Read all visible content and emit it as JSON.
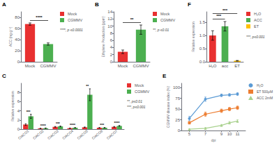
{
  "chart_data": [
    {
      "type": "bar",
      "title": "A",
      "categories": [
        "Mock",
        "CGMMV"
      ],
      "values": [
        68,
        32
      ],
      "errors": [
        2.0,
        2.0
      ],
      "colors": [
        "#e83030",
        "#4caf50"
      ],
      "legend_labels": [
        "Mock",
        "CGMMV"
      ],
      "legend": "right",
      "ylabel": "ACC (ng g⁻¹)",
      "ylim": [
        0,
        90
      ],
      "yticks": [
        0,
        20,
        40,
        60,
        80
      ],
      "grid": false,
      "annotations": [
        {
          "text": "****",
          "between": [
            "Mock",
            "CGMMV"
          ]
        },
        {
          "text": "****, p ≤0.0001"
        }
      ]
    },
    {
      "type": "bar",
      "title": "B",
      "categories": [
        "Mock",
        "CGMMV"
      ],
      "values": [
        2.8,
        9.0
      ],
      "errors": [
        0.5,
        1.3
      ],
      "colors": [
        "#e83030",
        "#4caf50"
      ],
      "legend_labels": [
        "Mock",
        "CGMMV"
      ],
      "legend": "right",
      "ylabel": "Ethylene Production (ppm)",
      "ylim": [
        0,
        14
      ],
      "yticks": [
        0,
        2,
        4,
        6,
        8,
        10,
        12,
        14
      ],
      "grid": false,
      "annotations": [
        {
          "text": "**",
          "between": [
            "Mock",
            "CGMMV"
          ]
        },
        {
          "text": "**, p ≤0.01"
        }
      ]
    },
    {
      "type": "bar",
      "title": "C",
      "categories": [
        "ClACO1",
        "ClACO2",
        "ClACO3",
        "ClACO4",
        "ClACO5",
        "ClACO6",
        "ClACO7"
      ],
      "series": [
        {
          "name": "Mock",
          "color": "#e83030",
          "values": [
            1.0,
            0.15,
            0.5,
            0.2,
            0.4,
            0.3,
            0.5
          ],
          "errors": [
            0.18,
            0.04,
            0.08,
            0.04,
            0.07,
            0.05,
            0.08
          ]
        },
        {
          "name": "CGMMV",
          "color": "#4caf50",
          "values": [
            2.8,
            0.2,
            0.6,
            0.3,
            7.5,
            0.3,
            0.7
          ],
          "errors": [
            0.45,
            0.05,
            0.1,
            0.05,
            1.3,
            0.05,
            0.1
          ]
        }
      ],
      "legend": "right",
      "ylabel": "Relative expression",
      "ylim": [
        0,
        10
      ],
      "yticks": [
        0,
        2,
        4,
        6,
        8
      ],
      "grid": false,
      "annotations": [
        {
          "text": "***",
          "category": "ClACO1"
        },
        {
          "text": "****",
          "category": "ClACO2"
        },
        {
          "text": "***",
          "category": "ClACO3"
        },
        {
          "text": "****",
          "category": "ClACO4"
        },
        {
          "text": "**",
          "category": "ClACO5"
        },
        {
          "text": "***",
          "category": "ClACO6"
        },
        {
          "text": "****",
          "category": "ClACO7"
        },
        {
          "text": "**, p≤0.01"
        },
        {
          "text": "***, p≤0.001"
        }
      ]
    },
    {
      "type": "line",
      "title": "E",
      "x": [
        5,
        7,
        9,
        10,
        11
      ],
      "series": [
        {
          "name": "H₂O",
          "color": "#5b9bd5",
          "marker": "circle",
          "values": [
            28,
            73,
            82,
            83,
            85
          ],
          "errors": [
            5,
            5,
            3,
            3,
            3
          ]
        },
        {
          "name": "ET 500μM",
          "color": "#ed7d31",
          "marker": "square",
          "values": [
            18,
            38,
            46,
            50,
            53
          ],
          "errors": [
            3,
            5,
            4,
            4,
            4
          ]
        },
        {
          "name": "ACC 2mM",
          "color": "#a9d18e",
          "marker": "triangle",
          "values": [
            3,
            5,
            12,
            18,
            22
          ],
          "errors": [
            1,
            2,
            2,
            3,
            3
          ]
        }
      ],
      "legend": "right",
      "xlabel": "dpi",
      "ylabel": "CGMMV disease index (%)",
      "xlim": [
        4,
        12
      ],
      "xticks": [
        5,
        7,
        9,
        10,
        11
      ],
      "ylim": [
        0,
        110
      ],
      "yticks": [
        0,
        25,
        50,
        75,
        100
      ],
      "grid": false
    },
    {
      "type": "bar",
      "title": "F",
      "categories": [
        "H₂O",
        "acc",
        "ET"
      ],
      "values": [
        1.0,
        1.35,
        0.04
      ],
      "errors": [
        0.18,
        0.18,
        0.01
      ],
      "colors": [
        "#e83030",
        "#4caf50",
        "#ffc000"
      ],
      "legend_labels": [
        "H₂O",
        "ACC",
        "ET"
      ],
      "legend": "right",
      "ylabel": "Relative expression",
      "ylim": [
        0,
        1.9
      ],
      "yticks": [
        {
          "value": 0.0,
          "label": "0.0"
        },
        0.5,
        {
          "value": 1.0,
          "label": "1.0"
        },
        1.5
      ],
      "grid": false,
      "annotations": [
        {
          "text": "***",
          "between": [
            "H₂O",
            "acc"
          ]
        },
        {
          "text": "***",
          "between": [
            "H₂O",
            "ET"
          ]
        },
        {
          "text": "***, p≤0.001"
        }
      ]
    }
  ]
}
